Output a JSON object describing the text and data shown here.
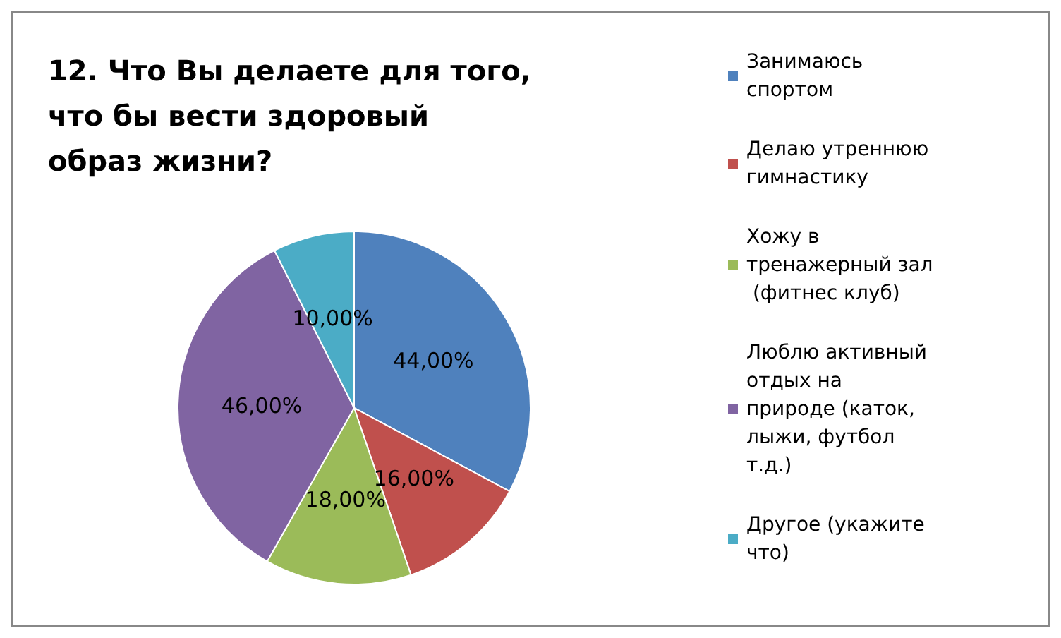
{
  "chart_data": {
    "type": "pie",
    "title": "12. Что Вы делаете для того, что бы вести здоровый образ жизни?",
    "categories": [
      "Занимаюсь спортом",
      "Делаю утреннюю гимнастику",
      "Хожу в тренажерный зал (фитнес клуб)",
      "Люблю активный отдых на природе (каток, лыжи, футбол т.д.)",
      "Другое (укажите что)"
    ],
    "values": [
      44,
      16,
      18,
      46,
      10
    ],
    "value_labels": [
      "44,00%",
      "16,00%",
      "18,00%",
      "46,00%",
      "10,00%"
    ],
    "colors": [
      "#4f81bd",
      "#c0504d",
      "#9bbb59",
      "#8064a2",
      "#4bacc6"
    ],
    "legend": "right"
  }
}
